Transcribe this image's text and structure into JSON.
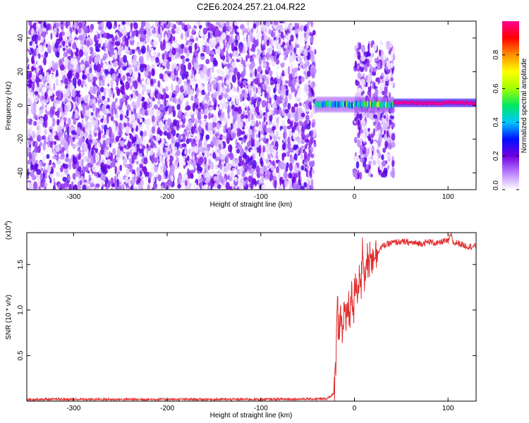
{
  "chart_data": [
    {
      "type": "heatmap",
      "title": "C2E6.2024.257.21.04.R22",
      "xlabel": "Height of straight line (km)",
      "ylabel": "Frequency (Hz)",
      "xlim": [
        -350,
        130
      ],
      "ylim": [
        -50,
        50
      ],
      "x_ticks": [
        -300,
        -200,
        -100,
        0,
        100
      ],
      "x_tick_labels": [
        "-300",
        "-200",
        "-100",
        "0",
        "100"
      ],
      "y_ticks": [
        -40,
        -20,
        0,
        20,
        40
      ],
      "y_tick_labels": [
        "-40",
        "-20",
        "0",
        "20",
        "40"
      ],
      "colorbar": {
        "label": "Normalized spectral amplitude",
        "range": [
          0,
          1
        ],
        "ticks": [
          0.0,
          0.2,
          0.4,
          0.6,
          0.8
        ],
        "tick_labels": [
          "0.0",
          "0.2",
          "0.4",
          "0.6",
          "0.8"
        ],
        "colors": [
          "#ffffff",
          "#b980ff",
          "#7000e0",
          "#0010ff",
          "#00c8ff",
          "#00e860",
          "#a0ff00",
          "#ffff00",
          "#ff9000",
          "#ff0000",
          "#ff0090"
        ]
      },
      "regions": [
        {
          "x": [
            -350,
            -42
          ],
          "freq": [
            -50,
            50
          ],
          "amplitude": 0.15,
          "pattern": "scattered noise"
        },
        {
          "x": [
            -42,
            0
          ],
          "freq": [
            -4,
            5
          ],
          "amplitude": 0.5,
          "pattern": "narrow band near 1 Hz"
        },
        {
          "x": [
            0,
            42
          ],
          "freq": [
            -42,
            37
          ],
          "amplitude": 0.15,
          "pattern": "broad noise"
        },
        {
          "x": [
            0,
            42
          ],
          "freq": [
            -4,
            5
          ],
          "amplitude": 0.6,
          "pattern": "band near 2 Hz"
        },
        {
          "x": [
            42,
            130
          ],
          "freq": [
            -1,
            4
          ],
          "amplitude": 1.0,
          "pattern": "strong line near 1.5 Hz"
        }
      ]
    },
    {
      "type": "line",
      "xlabel": "Height of straight line (km)",
      "ylabel": "SNR (10 * v/v)",
      "y_multiplier_label": "(x10",
      "y_multiplier_exp": "4",
      "y_multiplier_close": ")",
      "xlim": [
        -350,
        130
      ],
      "ylim": [
        0,
        18500
      ],
      "x_ticks": [
        -300,
        -200,
        -100,
        0,
        100
      ],
      "x_tick_labels": [
        "-300",
        "-200",
        "-100",
        "0",
        "100"
      ],
      "y_ticks": [
        5000,
        10000,
        15000
      ],
      "y_tick_labels": [
        "0.5",
        "1.0",
        "1.5"
      ],
      "color": "#e03030",
      "series": [
        {
          "x": [
            -350,
            -100,
            -30,
            -22,
            -20,
            -19,
            -18.5,
            -17,
            -15,
            -13,
            -11,
            -9,
            -7,
            -5,
            -3,
            -1,
            1,
            3,
            5,
            7,
            9,
            11,
            13,
            15,
            17,
            19,
            21,
            23,
            25,
            30,
            35,
            40,
            50,
            60,
            70,
            80,
            90,
            95,
            100,
            103,
            106,
            110,
            120,
            130
          ],
          "y": [
            200,
            200,
            250,
            800,
            3500,
            9000,
            12500,
            7000,
            10500,
            7500,
            9500,
            8000,
            11000,
            9000,
            12000,
            9500,
            13000,
            11000,
            14500,
            12000,
            17000,
            13000,
            16500,
            14000,
            17500,
            15000,
            17000,
            16000,
            16500,
            17000,
            17200,
            17400,
            17500,
            17400,
            17300,
            17500,
            17300,
            17600,
            17500,
            18300,
            17300,
            17400,
            17000,
            17000
          ]
        }
      ]
    }
  ]
}
